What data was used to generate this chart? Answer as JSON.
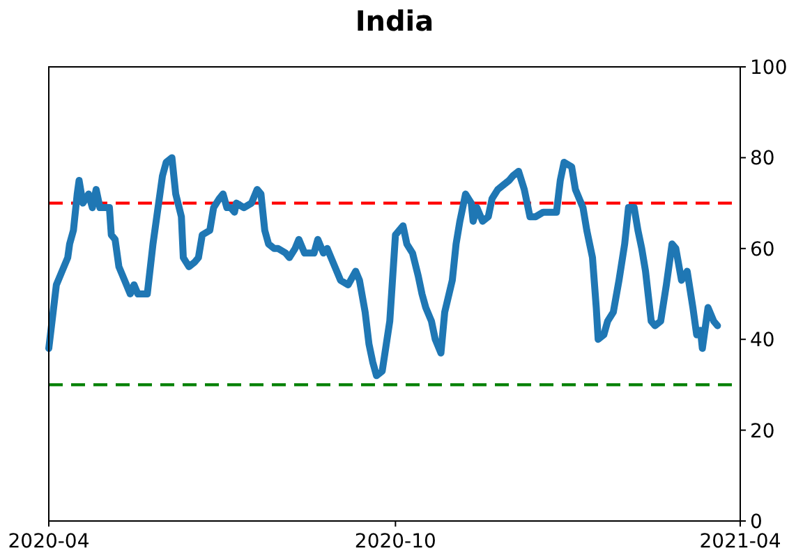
{
  "chart_data": {
    "type": "line",
    "title": "India",
    "x": [
      "2020-04-01",
      "2020-04-05",
      "2020-04-08",
      "2020-04-11",
      "2020-04-12",
      "2020-04-14",
      "2020-04-16",
      "2020-04-17",
      "2020-04-19",
      "2020-04-22",
      "2020-04-24",
      "2020-04-26",
      "2020-04-28",
      "2020-04-30",
      "2020-05-03",
      "2020-05-04",
      "2020-05-06",
      "2020-05-08",
      "2020-05-11",
      "2020-05-14",
      "2020-05-16",
      "2020-05-18",
      "2020-05-21",
      "2020-05-23",
      "2020-05-26",
      "2020-05-28",
      "2020-05-31",
      "2020-06-02",
      "2020-06-05",
      "2020-06-07",
      "2020-06-10",
      "2020-06-11",
      "2020-06-14",
      "2020-06-17",
      "2020-06-19",
      "2020-06-21",
      "2020-06-25",
      "2020-06-27",
      "2020-06-30",
      "2020-07-02",
      "2020-07-04",
      "2020-07-06",
      "2020-07-08",
      "2020-07-09",
      "2020-07-13",
      "2020-07-17",
      "2020-07-20",
      "2020-07-22",
      "2020-07-24",
      "2020-07-26",
      "2020-07-29",
      "2020-07-31",
      "2020-08-04",
      "2020-08-06",
      "2020-08-09",
      "2020-08-11",
      "2020-08-14",
      "2020-08-19",
      "2020-08-21",
      "2020-08-24",
      "2020-08-26",
      "2020-08-30",
      "2020-09-02",
      "2020-09-06",
      "2020-09-10",
      "2020-09-12",
      "2020-09-15",
      "2020-09-17",
      "2020-09-19",
      "2020-09-21",
      "2020-09-24",
      "2020-09-28",
      "2020-10-01",
      "2020-10-03",
      "2020-10-05",
      "2020-10-07",
      "2020-10-10",
      "2020-10-13",
      "2020-10-15",
      "2020-10-17",
      "2020-10-20",
      "2020-10-22",
      "2020-10-25",
      "2020-10-27",
      "2020-10-31",
      "2020-11-02",
      "2020-11-04",
      "2020-11-07",
      "2020-11-10",
      "2020-11-11",
      "2020-11-13",
      "2020-11-16",
      "2020-11-19",
      "2020-11-21",
      "2020-11-24",
      "2020-11-27",
      "2020-11-30",
      "2020-12-02",
      "2020-12-05",
      "2020-12-08",
      "2020-12-11",
      "2020-12-14",
      "2020-12-18",
      "2020-12-22",
      "2020-12-25",
      "2020-12-27",
      "2020-12-29",
      "2021-01-02",
      "2021-01-04",
      "2021-01-08",
      "2021-01-10",
      "2021-01-13",
      "2021-01-15",
      "2021-01-16",
      "2021-01-19",
      "2021-01-21",
      "2021-01-24",
      "2021-01-27",
      "2021-01-30",
      "2021-02-01",
      "2021-02-04",
      "2021-02-06",
      "2021-02-08",
      "2021-02-10",
      "2021-02-13",
      "2021-02-15",
      "2021-02-18",
      "2021-02-21",
      "2021-02-24",
      "2021-02-26",
      "2021-03-01",
      "2021-03-04",
      "2021-03-07",
      "2021-03-09",
      "2021-03-11",
      "2021-03-12",
      "2021-03-15",
      "2021-03-18",
      "2021-03-20"
    ],
    "series": [
      {
        "color": "#1f77b4",
        "values": [
          38,
          52,
          55,
          58,
          61,
          64,
          72,
          75,
          70,
          72,
          69,
          73,
          69,
          69,
          69,
          63,
          62,
          56,
          53,
          50,
          52,
          50,
          50,
          50,
          61,
          67,
          76,
          79,
          80,
          72,
          67,
          58,
          56,
          57,
          58,
          63,
          64,
          69,
          71,
          72,
          69,
          69,
          68,
          70,
          69,
          70,
          73,
          72,
          64,
          61,
          60,
          60,
          59,
          58,
          60,
          62,
          59,
          59,
          62,
          59,
          60,
          56,
          53,
          52,
          55,
          53,
          46,
          39,
          35,
          32,
          33,
          44,
          63,
          64,
          65,
          61,
          59,
          54,
          50,
          47,
          44,
          40,
          37,
          46,
          53,
          61,
          66,
          72,
          70,
          66,
          69,
          66,
          67,
          71,
          73,
          74,
          75,
          76,
          77,
          73,
          67,
          67,
          68,
          68,
          68,
          75,
          79,
          78,
          73,
          69,
          64,
          58,
          47,
          40,
          41,
          44,
          46,
          53,
          61,
          69,
          69,
          64,
          60,
          55,
          44,
          43,
          44,
          52,
          61,
          60,
          53,
          55,
          47,
          41,
          42,
          38,
          47,
          44,
          43
        ]
      }
    ],
    "xlim": [
      "2020-04-01",
      "2021-04-01"
    ],
    "xticks": [
      "2020-04",
      "2020-10",
      "2021-04"
    ],
    "ylim": [
      0,
      100
    ],
    "yticks": [
      0,
      20,
      40,
      60,
      80,
      100
    ],
    "ref_lines": [
      {
        "axis": "y",
        "value": 70,
        "color": "#ff0000",
        "line_style": "dashed"
      },
      {
        "axis": "y",
        "value": 30,
        "color": "#008000",
        "line_style": "dashed"
      }
    ]
  }
}
